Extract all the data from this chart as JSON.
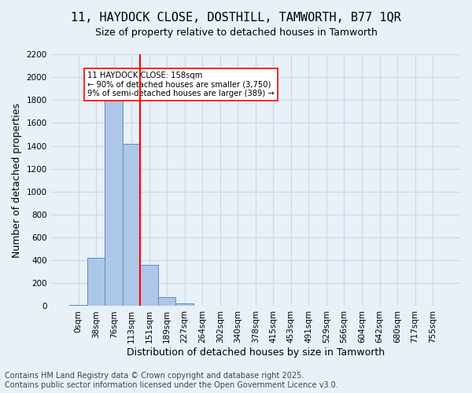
{
  "title_line1": "11, HAYDOCK CLOSE, DOSTHILL, TAMWORTH, B77 1QR",
  "title_line2": "Size of property relative to detached houses in Tamworth",
  "xlabel": "Distribution of detached houses by size in Tamworth",
  "ylabel": "Number of detached properties",
  "bar_labels": [
    "0sqm",
    "38sqm",
    "76sqm",
    "113sqm",
    "151sqm",
    "189sqm",
    "227sqm",
    "264sqm",
    "302sqm",
    "340sqm",
    "378sqm",
    "415sqm",
    "453sqm",
    "491sqm",
    "529sqm",
    "566sqm",
    "604sqm",
    "642sqm",
    "680sqm",
    "717sqm",
    "755sqm"
  ],
  "bar_values": [
    10,
    425,
    1830,
    1415,
    360,
    80,
    25,
    5,
    0,
    0,
    0,
    0,
    0,
    0,
    0,
    0,
    0,
    0,
    0,
    0,
    0
  ],
  "bar_color": "#aec6e8",
  "bar_edge_color": "#5a8fc2",
  "vline_x": 4.0,
  "vline_color": "red",
  "annotation_text": "11 HAYDOCK CLOSE: 158sqm\n← 90% of detached houses are smaller (3,750)\n9% of semi-detached houses are larger (389) →",
  "annotation_box_color": "white",
  "annotation_box_edge_color": "red",
  "ylim": [
    0,
    2200
  ],
  "yticks": [
    0,
    200,
    400,
    600,
    800,
    1000,
    1200,
    1400,
    1600,
    1800,
    2000,
    2200
  ],
  "grid_color": "#c8d8e8",
  "background_color": "#e8f0f8",
  "footer_line1": "Contains HM Land Registry data © Crown copyright and database right 2025.",
  "footer_line2": "Contains public sector information licensed under the Open Government Licence v3.0.",
  "title_fontsize": 11,
  "axis_fontsize": 9,
  "tick_fontsize": 7.5,
  "footer_fontsize": 7
}
